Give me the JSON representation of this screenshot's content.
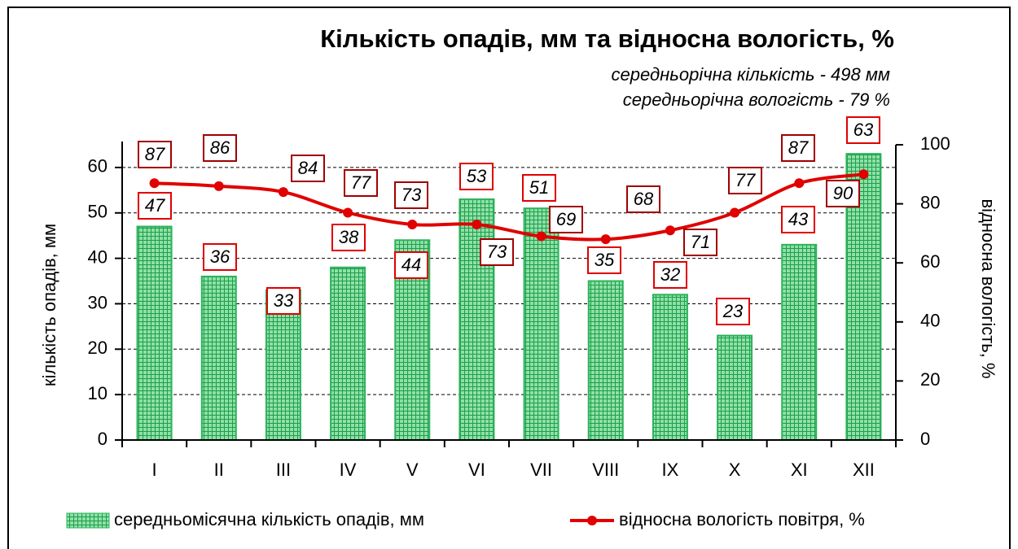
{
  "chart_data": {
    "type": "bar-line",
    "title": "Кількість опадів, мм та відносна вологість, %",
    "subtitles": [
      "середньорічна кількість - 498 мм",
      "середньорічна вологість - 79 %"
    ],
    "ylabel": "кількість опадів, мм",
    "y2label": "відносна вологість, %",
    "categories": [
      "I",
      "II",
      "III",
      "IV",
      "V",
      "VI",
      "VII",
      "VIII",
      "IX",
      "X",
      "XI",
      "XII"
    ],
    "series": [
      {
        "name": "середньомісячна кількість опадів, мм",
        "type": "bar",
        "color": "#2bb35a",
        "values": [
          47,
          36,
          33,
          38,
          44,
          53,
          51,
          35,
          32,
          23,
          43,
          63
        ]
      },
      {
        "name": "відносна вологість повітря, %",
        "type": "line",
        "axis": "y2",
        "color": "#e00000",
        "values": [
          87,
          86,
          84,
          77,
          73,
          73,
          69,
          68,
          71,
          77,
          87,
          90
        ]
      }
    ],
    "ylim": [
      0,
      65
    ],
    "yticks": [
      0,
      10,
      20,
      30,
      40,
      50,
      60
    ],
    "y2lim": [
      0,
      100
    ],
    "y2ticks": [
      0,
      20,
      40,
      60,
      80,
      100
    ],
    "grid": true,
    "legend": "bottom"
  }
}
